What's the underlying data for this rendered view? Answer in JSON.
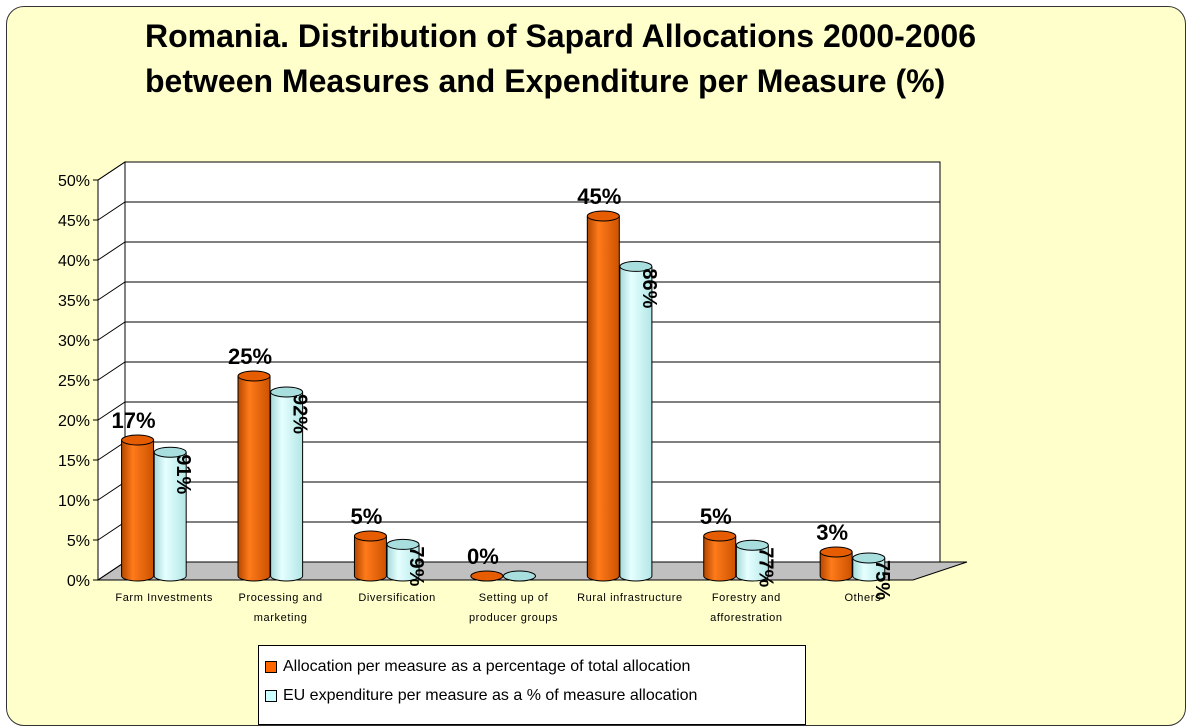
{
  "chart_data": {
    "type": "bar",
    "title": "Romania. Distribution of Sapard Allocations 2000-2006 between Measures and Expenditure per Measure (%)",
    "categories": [
      "Farm Investments",
      "Processing and marketing",
      "Diversification",
      "Setting up of producer groups",
      "Rural infrastructure",
      "Forestry and afforestration",
      "Others"
    ],
    "series": [
      {
        "name": "Allocation per measure as a percentage of total allocation",
        "color": "#ff6600",
        "values": [
          17,
          25,
          5,
          0,
          45,
          5,
          3
        ],
        "value_labels": [
          "17%",
          "25%",
          "5%",
          "0%",
          "45%",
          "5%",
          "3%"
        ]
      },
      {
        "name": "EU expenditure per measure as a % of measure allocation",
        "color": "#ccffff",
        "values": [
          91,
          92,
          79,
          null,
          86,
          77,
          75
        ],
        "value_labels": [
          "91%",
          "92%",
          "79%",
          null,
          "86%",
          "77%",
          "75%"
        ]
      }
    ],
    "ylim": [
      0,
      50
    ],
    "yticks": [
      {
        "value": 0,
        "label": "0%"
      },
      {
        "value": 5,
        "label": "5%"
      },
      {
        "value": 10,
        "label": "10%"
      },
      {
        "value": 15,
        "label": "15%"
      },
      {
        "value": 20,
        "label": "20%"
      },
      {
        "value": 25,
        "label": "25%"
      },
      {
        "value": 30,
        "label": "30%"
      },
      {
        "value": 35,
        "label": "35%"
      },
      {
        "value": 40,
        "label": "40%"
      },
      {
        "value": 45,
        "label": "45%"
      },
      {
        "value": 50,
        "label": "50%"
      }
    ],
    "grid": true,
    "legend": "bottom"
  }
}
